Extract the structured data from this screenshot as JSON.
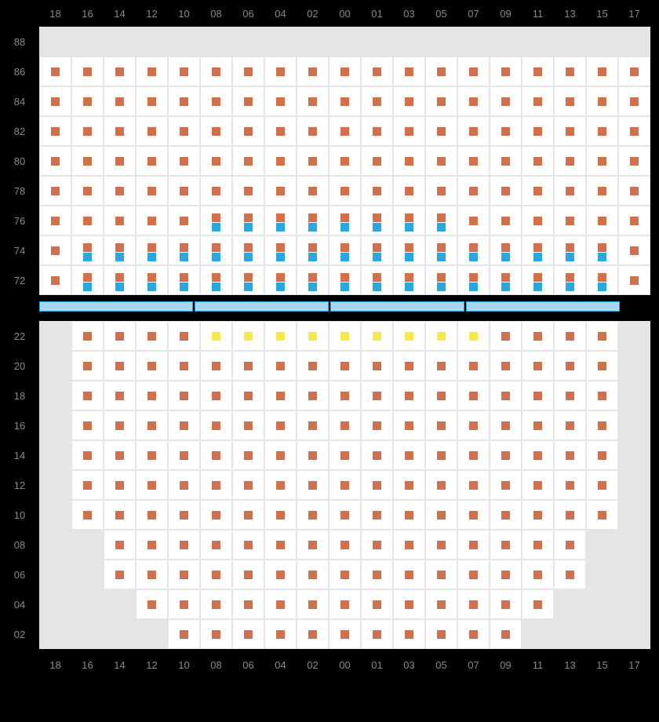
{
  "columns": [
    "18",
    "16",
    "14",
    "12",
    "10",
    "08",
    "06",
    "04",
    "02",
    "00",
    "01",
    "03",
    "05",
    "07",
    "09",
    "11",
    "13",
    "15",
    "17"
  ],
  "upper_rows": [
    "88",
    "86",
    "84",
    "82",
    "80",
    "78",
    "76",
    "74",
    "72"
  ],
  "lower_rows": [
    "22",
    "20",
    "18",
    "16",
    "14",
    "12",
    "10",
    "08",
    "06",
    "04",
    "02"
  ],
  "colors": {
    "orange": "#d1704a",
    "blue": "#29a8e0",
    "yellow": "#f7e94a",
    "empty": "#e5e5e5",
    "white": "#ffffff",
    "text": "#888888",
    "grid": "#e5e5e5",
    "divider_fill": "#a8d8f0",
    "divider_border": "#29a8e0",
    "bg": "#000000"
  },
  "cell_size": {
    "w": 41,
    "h": 38
  },
  "seat_sq": 11,
  "upper_cells": [
    [
      "E",
      "E",
      "E",
      "E",
      "E",
      "E",
      "E",
      "E",
      "E",
      "E",
      "E",
      "E",
      "E",
      "E",
      "E",
      "E",
      "E",
      "E",
      "E"
    ],
    [
      "O",
      "O",
      "O",
      "O",
      "O",
      "O",
      "O",
      "O",
      "O",
      "O",
      "O",
      "O",
      "O",
      "O",
      "O",
      "O",
      "O",
      "O",
      "O"
    ],
    [
      "O",
      "O",
      "O",
      "O",
      "O",
      "O",
      "O",
      "O",
      "O",
      "O",
      "O",
      "O",
      "O",
      "O",
      "O",
      "O",
      "O",
      "O",
      "O"
    ],
    [
      "O",
      "O",
      "O",
      "O",
      "O",
      "O",
      "O",
      "O",
      "O",
      "O",
      "O",
      "O",
      "O",
      "O",
      "O",
      "O",
      "O",
      "O",
      "O"
    ],
    [
      "O",
      "O",
      "O",
      "O",
      "O",
      "O",
      "O",
      "O",
      "O",
      "O",
      "O",
      "O",
      "O",
      "O",
      "O",
      "O",
      "O",
      "O",
      "O"
    ],
    [
      "O",
      "O",
      "O",
      "O",
      "O",
      "O",
      "O",
      "O",
      "O",
      "O",
      "O",
      "O",
      "O",
      "O",
      "O",
      "O",
      "O",
      "O",
      "O"
    ],
    [
      "O",
      "O",
      "O",
      "O",
      "O",
      "OB",
      "OB",
      "OB",
      "OB",
      "OB",
      "OB",
      "OB",
      "OB",
      "O",
      "O",
      "O",
      "O",
      "O",
      "O"
    ],
    [
      "O",
      "OB",
      "OB",
      "OB",
      "OB",
      "OB",
      "OB",
      "OB",
      "OB",
      "OB",
      "OB",
      "OB",
      "OB",
      "OB",
      "OB",
      "OB",
      "OB",
      "OB",
      "O"
    ],
    [
      "O",
      "OB",
      "OB",
      "OB",
      "OB",
      "OB",
      "OB",
      "OB",
      "OB",
      "OB",
      "OB",
      "OB",
      "OB",
      "OB",
      "OB",
      "OB",
      "OB",
      "OB",
      "O"
    ]
  ],
  "lower_cells": [
    [
      "E",
      "O",
      "O",
      "O",
      "O",
      "Y",
      "Y",
      "Y",
      "Y",
      "Y",
      "Y",
      "Y",
      "Y",
      "Y",
      "O",
      "O",
      "O",
      "O",
      "E"
    ],
    [
      "E",
      "O",
      "O",
      "O",
      "O",
      "O",
      "O",
      "O",
      "O",
      "O",
      "O",
      "O",
      "O",
      "O",
      "O",
      "O",
      "O",
      "O",
      "E"
    ],
    [
      "E",
      "O",
      "O",
      "O",
      "O",
      "O",
      "O",
      "O",
      "O",
      "O",
      "O",
      "O",
      "O",
      "O",
      "O",
      "O",
      "O",
      "O",
      "E"
    ],
    [
      "E",
      "O",
      "O",
      "O",
      "O",
      "O",
      "O",
      "O",
      "O",
      "O",
      "O",
      "O",
      "O",
      "O",
      "O",
      "O",
      "O",
      "O",
      "E"
    ],
    [
      "E",
      "O",
      "O",
      "O",
      "O",
      "O",
      "O",
      "O",
      "O",
      "O",
      "O",
      "O",
      "O",
      "O",
      "O",
      "O",
      "O",
      "O",
      "E"
    ],
    [
      "E",
      "O",
      "O",
      "O",
      "O",
      "O",
      "O",
      "O",
      "O",
      "O",
      "O",
      "O",
      "O",
      "O",
      "O",
      "O",
      "O",
      "O",
      "E"
    ],
    [
      "E",
      "O",
      "O",
      "O",
      "O",
      "O",
      "O",
      "O",
      "O",
      "O",
      "O",
      "O",
      "O",
      "O",
      "O",
      "O",
      "O",
      "O",
      "E"
    ],
    [
      "E",
      "E",
      "O",
      "O",
      "O",
      "O",
      "O",
      "O",
      "O",
      "O",
      "O",
      "O",
      "O",
      "O",
      "O",
      "O",
      "O",
      "E",
      "E"
    ],
    [
      "E",
      "E",
      "O",
      "O",
      "O",
      "O",
      "O",
      "O",
      "O",
      "O",
      "O",
      "O",
      "O",
      "O",
      "O",
      "O",
      "O",
      "E",
      "E"
    ],
    [
      "E",
      "E",
      "E",
      "O",
      "O",
      "O",
      "O",
      "O",
      "O",
      "O",
      "O",
      "O",
      "O",
      "O",
      "O",
      "O",
      "E",
      "E",
      "E"
    ],
    [
      "E",
      "E",
      "E",
      "E",
      "O",
      "O",
      "O",
      "O",
      "O",
      "O",
      "O",
      "O",
      "O",
      "O",
      "O",
      "E",
      "E",
      "E",
      "E"
    ]
  ],
  "divider_segments": 4
}
